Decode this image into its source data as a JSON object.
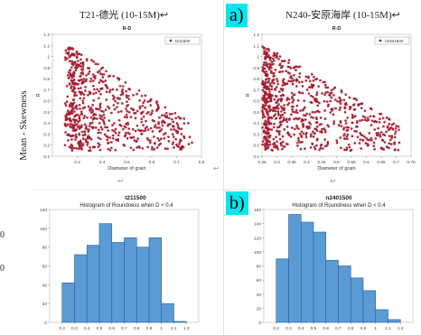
{
  "left_strip": {
    "label": "Mean - Skewness",
    "edge_chars": [
      "0",
      "0"
    ]
  },
  "panels": {
    "top_left_title": "T21-德光 (10-15M)↩",
    "top_right_title": "N240-安原海岸 (10-15M)↩",
    "marker_a": "a)",
    "marker_b": "b)",
    "arrow_glyph": "↩",
    "hist_left_header": "t211500",
    "hist_left_subtitle": "Histogram of Roundness when D < 0.4",
    "hist_right_header": "n2401500",
    "hist_right_subtitle": "Histogram of Roundness when D < 0.4"
  },
  "colors": {
    "scatter": "#a51c30",
    "bar": "#5b9bd5",
    "bar_edge": "#2f5f8f",
    "marker_bg": "#00e8ee"
  },
  "chart_data": [
    {
      "type": "scatter",
      "title": "R-D",
      "xlabel": "Diameter of grain",
      "ylabel": "R",
      "xlim": [
        0.2,
        0.8
      ],
      "ylim": [
        0.1,
        1.2
      ],
      "xticks": [
        "0.3",
        "0.4",
        "0.5",
        "0.6",
        "0.7",
        "0.8"
      ],
      "yticks": [
        "0.1",
        "0.2",
        "0.3",
        "0.4",
        "0.5",
        "0.6",
        "0.7",
        "0.8",
        "0.9",
        "1",
        "1.1",
        "1.2"
      ],
      "legend": {
        "placement": "top-right",
        "label": "t211500"
      },
      "grid": false,
      "series": [
        {
          "name": "t211500",
          "n": 700,
          "x_min": 0.25,
          "x_peak": 0.3,
          "x_max": 0.78,
          "y_min": 0.15,
          "y_max": 1.12
        }
      ]
    },
    {
      "type": "scatter",
      "title": "R-D",
      "xlabel": "Diameter of grain",
      "ylabel": "R",
      "xlim": [
        0.25,
        0.75
      ],
      "ylim": [
        0.1,
        1.2
      ],
      "xticks": [
        "0.25",
        "0.3",
        "0.35",
        "0.4",
        "0.45",
        "0.5",
        "0.55",
        "0.6",
        "0.65",
        "0.7",
        "0.75"
      ],
      "yticks": [
        "0.1",
        "0.2",
        "0.3",
        "0.4",
        "0.5",
        "0.6",
        "0.7",
        "0.8",
        "0.9",
        "1",
        "1.1",
        "1.2"
      ],
      "legend": {
        "placement": "top-right",
        "label": "n2401500"
      },
      "grid": false,
      "series": [
        {
          "name": "n2401500",
          "n": 800,
          "x_min": 0.25,
          "x_peak": 0.27,
          "x_max": 0.72,
          "y_min": 0.15,
          "y_max": 1.12
        }
      ]
    },
    {
      "type": "bar",
      "title": "Histogram of Roundness when D < 0.4",
      "xlim": [
        0.1,
        1.3
      ],
      "ylim": [
        0,
        120
      ],
      "xticks": [
        "0.2",
        "0.3",
        "0.4",
        "0.5",
        "0.6",
        "0.7",
        "0.8",
        "0.9",
        "1",
        "1.1",
        "1.2"
      ],
      "yticks": [
        "0",
        "20",
        "40",
        "60",
        "80",
        "100",
        "120"
      ],
      "bins": [
        [
          0.2,
          0.3
        ],
        [
          0.3,
          0.4
        ],
        [
          0.4,
          0.5
        ],
        [
          0.5,
          0.6
        ],
        [
          0.6,
          0.7
        ],
        [
          0.7,
          0.8
        ],
        [
          0.8,
          0.9
        ],
        [
          0.9,
          1.0
        ],
        [
          1.0,
          1.1
        ],
        [
          1.1,
          1.2
        ]
      ],
      "values": [
        42,
        72,
        82,
        105,
        85,
        90,
        80,
        90,
        20,
        1
      ]
    },
    {
      "type": "bar",
      "title": "Histogram of Roundness when D < 0.4",
      "xlim": [
        0.1,
        1.3
      ],
      "ylim": [
        0,
        160
      ],
      "xticks": [
        "0.2",
        "0.3",
        "0.4",
        "0.5",
        "0.6",
        "0.7",
        "0.8",
        "0.9",
        "1",
        "1.1",
        "1.2"
      ],
      "yticks": [
        "0",
        "20",
        "40",
        "60",
        "80",
        "100",
        "120",
        "140",
        "160"
      ],
      "bins": [
        [
          0.2,
          0.3
        ],
        [
          0.3,
          0.4
        ],
        [
          0.4,
          0.5
        ],
        [
          0.5,
          0.6
        ],
        [
          0.6,
          0.7
        ],
        [
          0.7,
          0.8
        ],
        [
          0.8,
          0.9
        ],
        [
          0.9,
          1.0
        ],
        [
          1.0,
          1.1
        ],
        [
          1.1,
          1.2
        ]
      ],
      "values": [
        90,
        153,
        142,
        128,
        88,
        80,
        63,
        45,
        18,
        4
      ]
    }
  ]
}
